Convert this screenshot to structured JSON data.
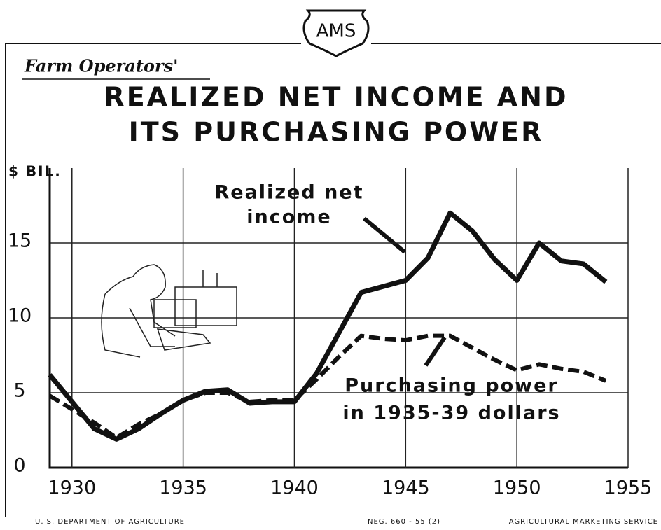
{
  "chart_data": {
    "type": "line",
    "logo": "AMS",
    "subtitle": "Farm Operators'",
    "title": [
      "REALIZED NET INCOME AND",
      "ITS PURCHASING POWER"
    ],
    "y_label": "$ BIL.",
    "x": [
      1929,
      1930,
      1931,
      1932,
      1933,
      1934,
      1935,
      1936,
      1937,
      1938,
      1939,
      1940,
      1941,
      1942,
      1943,
      1944,
      1945,
      1946,
      1947,
      1948,
      1949,
      1950,
      1951,
      1952,
      1953,
      1954
    ],
    "series": [
      {
        "name": [
          "Realized net",
          "income"
        ],
        "color": "#111",
        "dash": false,
        "values": [
          6.2,
          4.4,
          2.6,
          1.9,
          2.6,
          3.6,
          4.5,
          5.1,
          5.2,
          4.3,
          4.4,
          4.4,
          6.3,
          9.0,
          11.7,
          12.1,
          12.5,
          14.0,
          17.0,
          15.8,
          13.9,
          12.5,
          15.0,
          13.8,
          13.6,
          12.4
        ]
      },
      {
        "name": [
          "Purchasing power",
          "in 1935-39 dollars"
        ],
        "color": "#111",
        "dash": true,
        "values": [
          4.8,
          3.9,
          3.0,
          2.0,
          2.9,
          3.6,
          4.5,
          5.0,
          5.0,
          4.4,
          4.5,
          4.5,
          5.9,
          7.4,
          8.8,
          8.6,
          8.5,
          8.8,
          8.8,
          8.0,
          7.2,
          6.5,
          6.9,
          6.6,
          6.4,
          5.8
        ]
      }
    ],
    "xlim": [
      1929,
      1955
    ],
    "xticks": [
      1930,
      1935,
      1940,
      1945,
      1950,
      1955
    ],
    "ylim": [
      0,
      20
    ],
    "yticks": [
      0,
      5,
      10,
      15
    ],
    "grid": true,
    "footer_left": "U. S. DEPARTMENT OF AGRICULTURE",
    "footer_code": "NEG. 660 - 55 (2)",
    "footer_right": "AGRICULTURAL MARKETING SERVICE"
  }
}
